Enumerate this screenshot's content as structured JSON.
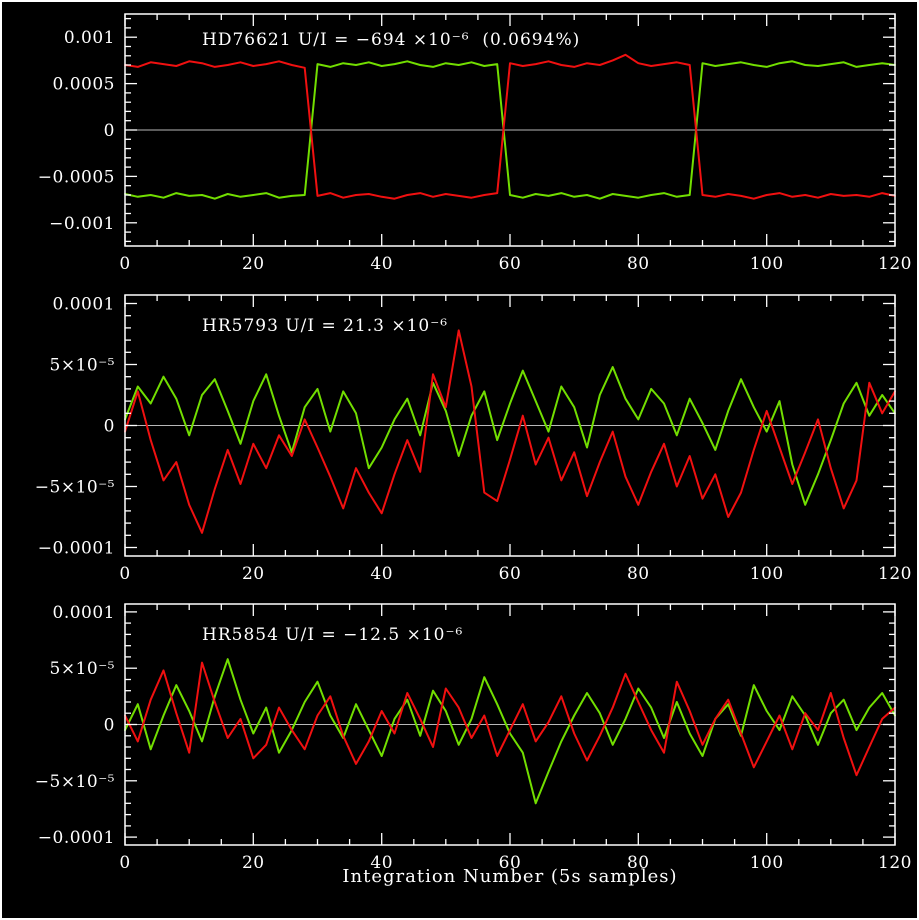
{
  "figure": {
    "background": "#000000",
    "frame_color": "#ffffff",
    "axis_color": "#ffffff",
    "zero_line_color": "#b8b8b8",
    "xlabel": "Integration Number (5s samples)",
    "xlim": [
      0,
      120
    ],
    "x_tick_values": [
      0,
      20,
      40,
      60,
      80,
      100,
      120
    ],
    "x_tick_labels": [
      "0",
      "20",
      "40",
      "60",
      "80",
      "100",
      "120"
    ],
    "x_minor_step": 5,
    "grid": "off",
    "legend": "none",
    "series_colors": {
      "red": "#f01010",
      "green": "#72de00"
    }
  },
  "chart_data": [
    {
      "type": "line",
      "id": "panel-hd76621",
      "title": "HD76621 U/I = −694 ×10⁻⁶  (0.0694%)",
      "ylim": [
        -0.00125,
        0.00125
      ],
      "y_tick_values": [
        0.001,
        0.0005,
        0,
        -0.0005,
        -0.001
      ],
      "y_tick_labels": [
        "0.001",
        "0.0005",
        "0",
        "−0.0005",
        "−0.001"
      ],
      "y_minor_step": 0.0001,
      "x_start": 0,
      "x_step": 2,
      "series": [
        {
          "name": "green",
          "values": [
            -0.00069,
            -0.00072,
            -0.0007,
            -0.00073,
            -0.00068,
            -0.00071,
            -0.0007,
            -0.00074,
            -0.00069,
            -0.00072,
            -0.0007,
            -0.00068,
            -0.00073,
            -0.00071,
            -0.0007,
            0.00071,
            0.00068,
            0.00072,
            0.0007,
            0.00073,
            0.00069,
            0.00071,
            0.00074,
            0.0007,
            0.00068,
            0.00072,
            0.0007,
            0.00073,
            0.00069,
            0.00071,
            -0.0007,
            -0.00073,
            -0.00069,
            -0.00071,
            -0.00068,
            -0.00072,
            -0.0007,
            -0.00074,
            -0.00069,
            -0.00071,
            -0.00073,
            -0.0007,
            -0.00068,
            -0.00072,
            -0.0007,
            0.00072,
            0.00069,
            0.00071,
            0.00073,
            0.0007,
            0.00068,
            0.00072,
            0.00074,
            0.0007,
            0.00069,
            0.00071,
            0.00073,
            0.00068,
            0.0007,
            0.00072,
            0.0007
          ]
        },
        {
          "name": "red",
          "values": [
            0.0007,
            0.00068,
            0.00073,
            0.00071,
            0.00069,
            0.00074,
            0.00072,
            0.00068,
            0.0007,
            0.00073,
            0.00069,
            0.00071,
            0.00074,
            0.0007,
            0.00067,
            -0.00071,
            -0.00068,
            -0.00073,
            -0.0007,
            -0.00069,
            -0.00072,
            -0.00074,
            -0.0007,
            -0.00068,
            -0.00072,
            -0.00069,
            -0.00071,
            -0.00073,
            -0.0007,
            -0.00068,
            0.00072,
            0.00069,
            0.00071,
            0.00074,
            0.0007,
            0.00068,
            0.00072,
            0.0007,
            0.00075,
            0.00081,
            0.00072,
            0.00069,
            0.00071,
            0.00073,
            0.0007,
            -0.0007,
            -0.00072,
            -0.00069,
            -0.00071,
            -0.00074,
            -0.0007,
            -0.00068,
            -0.00072,
            -0.0007,
            -0.00073,
            -0.00069,
            -0.00071,
            -0.0007,
            -0.00072,
            -0.00068,
            -0.00071
          ]
        }
      ]
    },
    {
      "type": "line",
      "id": "panel-hr5793",
      "title": "HR5793 U/I = 21.3 ×10⁻⁶",
      "ylim": [
        -0.000107,
        0.000107
      ],
      "y_tick_values": [
        0.0001,
        5e-05,
        0,
        -5e-05,
        -0.0001
      ],
      "y_tick_labels": [
        "0.0001",
        "5×10⁻⁵",
        "0",
        "−5×10⁻⁵",
        "−0.0001"
      ],
      "y_minor_step": 1e-05,
      "x_start": 0,
      "x_step": 2,
      "series": [
        {
          "name": "green",
          "values": [
            5e-06,
            3.2e-05,
            1.8e-05,
            4e-05,
            2.2e-05,
            -8e-06,
            2.5e-05,
            3.8e-05,
            1.2e-05,
            -1.5e-05,
            2e-05,
            4.2e-05,
            8e-06,
            -2.2e-05,
            1.5e-05,
            3e-05,
            -5e-06,
            2.8e-05,
            1e-05,
            -3.5e-05,
            -1.8e-05,
            5e-06,
            2.2e-05,
            -8e-06,
            3.5e-05,
            1.2e-05,
            -2.5e-05,
            8e-06,
            2.8e-05,
            -1.2e-05,
            1.8e-05,
            4.5e-05,
            2e-05,
            -5e-06,
            3.2e-05,
            1.5e-05,
            -1.8e-05,
            2.5e-05,
            4.8e-05,
            2.2e-05,
            5e-06,
            3e-05,
            1.8e-05,
            -8e-06,
            2.2e-05,
            2e-06,
            -2e-05,
            1.2e-05,
            3.8e-05,
            1.5e-05,
            -5e-06,
            2e-05,
            -3.2e-05,
            -6.5e-05,
            -4e-05,
            -1.2e-05,
            1.8e-05,
            3.5e-05,
            8e-06,
            2.5e-05,
            1e-05
          ]
        },
        {
          "name": "red",
          "values": [
            -5e-06,
            2.8e-05,
            -1.2e-05,
            -4.5e-05,
            -3e-05,
            -6.5e-05,
            -8.8e-05,
            -5.2e-05,
            -2e-05,
            -4.8e-05,
            -1.5e-05,
            -3.5e-05,
            -8e-06,
            -2.5e-05,
            5e-06,
            -1.8e-05,
            -4.2e-05,
            -6.8e-05,
            -3.5e-05,
            -5.5e-05,
            -7.2e-05,
            -4e-05,
            -1.2e-05,
            -3.8e-05,
            4.2e-05,
            1.5e-05,
            7.8e-05,
            3.2e-05,
            -5.5e-05,
            -6.2e-05,
            -2.8e-05,
            8e-06,
            -3.2e-05,
            -1e-05,
            -4.5e-05,
            -2.2e-05,
            -5.8e-05,
            -3e-05,
            -5e-06,
            -4.2e-05,
            -6.5e-05,
            -3.8e-05,
            -1.5e-05,
            -5e-05,
            -2.5e-05,
            -6e-05,
            -4e-05,
            -7.5e-05,
            -5.5e-05,
            -2e-05,
            1.2e-05,
            -1.8e-05,
            -4.8e-05,
            -2.2e-05,
            5e-06,
            -3.5e-05,
            -6.8e-05,
            -4.5e-05,
            3.5e-05,
            1e-05,
            2.8e-05
          ]
        }
      ]
    },
    {
      "type": "line",
      "id": "panel-hr5854",
      "title": "HR5854 U/I = −12.5 ×10⁻⁶",
      "ylim": [
        -0.000107,
        0.000107
      ],
      "y_tick_values": [
        0.0001,
        5e-05,
        0,
        -5e-05,
        -0.0001
      ],
      "y_tick_labels": [
        "0.0001",
        "5×10⁻⁵",
        "0",
        "−5×10⁻⁵",
        "−0.0001"
      ],
      "y_minor_step": 1e-05,
      "x_start": 0,
      "x_step": 2,
      "series": [
        {
          "name": "green",
          "values": [
            -5e-06,
            1.8e-05,
            -2.2e-05,
            8e-06,
            3.5e-05,
            1.2e-05,
            -1.5e-05,
            2.5e-05,
            5.8e-05,
            2.2e-05,
            -8e-06,
            1.5e-05,
            -2.5e-05,
            -5e-06,
            2e-05,
            3.8e-05,
            8e-06,
            -1.2e-05,
            1.8e-05,
            -5e-06,
            -2.8e-05,
            5e-06,
            2.2e-05,
            -1e-05,
            3e-05,
            1.2e-05,
            -1.8e-05,
            5e-06,
            4.2e-05,
            1.8e-05,
            -8e-06,
            -2.5e-05,
            -7e-05,
            -4.2e-05,
            -1.5e-05,
            8e-06,
            2.8e-05,
            1e-05,
            -1.8e-05,
            5e-06,
            3.2e-05,
            1.5e-05,
            -1.2e-05,
            2e-05,
            -8e-06,
            -2.8e-05,
            5e-06,
            1.8e-05,
            -1e-05,
            3.5e-05,
            1.2e-05,
            -5e-06,
            2.5e-05,
            8e-06,
            -1.8e-05,
            1e-05,
            2.2e-05,
            -5e-06,
            1.5e-05,
            2.8e-05,
            8e-06
          ]
        },
        {
          "name": "red",
          "values": [
            8e-06,
            -1.5e-05,
            2.2e-05,
            4.8e-05,
            1e-05,
            -2.5e-05,
            5.5e-05,
            2e-05,
            -1.2e-05,
            5e-06,
            -3e-05,
            -1.8e-05,
            1.5e-05,
            -5e-06,
            -2.2e-05,
            8e-06,
            2.5e-05,
            -1e-05,
            -3.5e-05,
            -1.5e-05,
            1.2e-05,
            -8e-06,
            2.8e-05,
            5e-06,
            -2e-05,
            3.2e-05,
            1.5e-05,
            -1.2e-05,
            8e-06,
            -2.8e-05,
            -5e-06,
            1.8e-05,
            -1.5e-05,
            2e-06,
            2.5e-05,
            -8e-06,
            -3.2e-05,
            -1e-05,
            1.5e-05,
            4.5e-05,
            2e-05,
            -5e-06,
            -2.5e-05,
            3.8e-05,
            1.2e-05,
            -1.8e-05,
            5e-06,
            2.2e-05,
            -8e-06,
            -3.8e-05,
            -1.5e-05,
            8e-06,
            -2.2e-05,
            1e-05,
            -5e-06,
            2.8e-05,
            -1.2e-05,
            -4.5e-05,
            -2e-05,
            5e-06,
            1.5e-05
          ]
        }
      ]
    }
  ]
}
